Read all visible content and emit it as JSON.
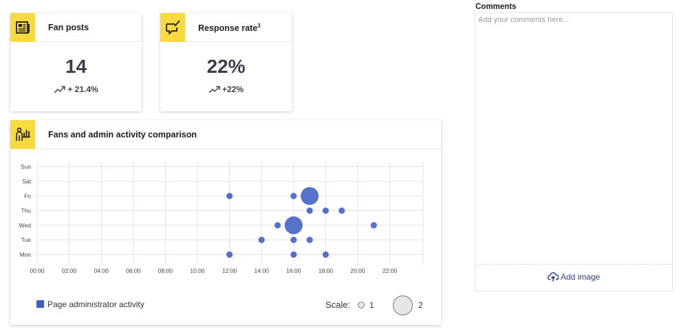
{
  "cards": {
    "fan_posts": {
      "title": "Fan posts",
      "value": "14",
      "change": "+ 21.4%"
    },
    "response_rate": {
      "title": "Response rate",
      "superscript": "3",
      "value": "22%",
      "change": "+22%"
    }
  },
  "activity": {
    "title": "Fans and admin activity comparison",
    "legend_label": "Page administrator activity",
    "scale_label": "Scale:",
    "scale_values": [
      "1",
      "2"
    ]
  },
  "comments": {
    "label": "Comments",
    "placeholder": "Add your comments here...",
    "add_image_label": "Add image"
  },
  "colors": {
    "accent_yellow": "#f8d93f",
    "bubble_blue": "#3f5fc4",
    "link_blue": "#2b3f86"
  },
  "chart_data": {
    "type": "scatter",
    "x_ticks": [
      "00:00",
      "02:00",
      "04:00",
      "06:00",
      "08:00",
      "10:00",
      "12:00",
      "14:00",
      "16:00",
      "18:00",
      "20:00",
      "22:00"
    ],
    "y_categories": [
      "Mon",
      "Tue",
      "Wed",
      "Thu",
      "Fri",
      "Sat",
      "Sun"
    ],
    "xlim": [
      0,
      24
    ],
    "grid": true,
    "series": [
      {
        "points": [
          {
            "hour": 12,
            "day": "Fri",
            "size": 1
          },
          {
            "hour": 16,
            "day": "Fri",
            "size": 1
          },
          {
            "hour": 17,
            "day": "Fri",
            "size": 2
          },
          {
            "hour": 17,
            "day": "Thu",
            "size": 1
          },
          {
            "hour": 18,
            "day": "Thu",
            "size": 1
          },
          {
            "hour": 19,
            "day": "Thu",
            "size": 1
          },
          {
            "hour": 15,
            "day": "Wed",
            "size": 1
          },
          {
            "hour": 16,
            "day": "Wed",
            "size": 2
          },
          {
            "hour": 21,
            "day": "Wed",
            "size": 1
          },
          {
            "hour": 14,
            "day": "Tue",
            "size": 1
          },
          {
            "hour": 16,
            "day": "Tue",
            "size": 1
          },
          {
            "hour": 17,
            "day": "Tue",
            "size": 1
          },
          {
            "hour": 12,
            "day": "Mon",
            "size": 1
          },
          {
            "hour": 16,
            "day": "Mon",
            "size": 1
          },
          {
            "hour": 18,
            "day": "Mon",
            "size": 1
          }
        ]
      }
    ]
  }
}
